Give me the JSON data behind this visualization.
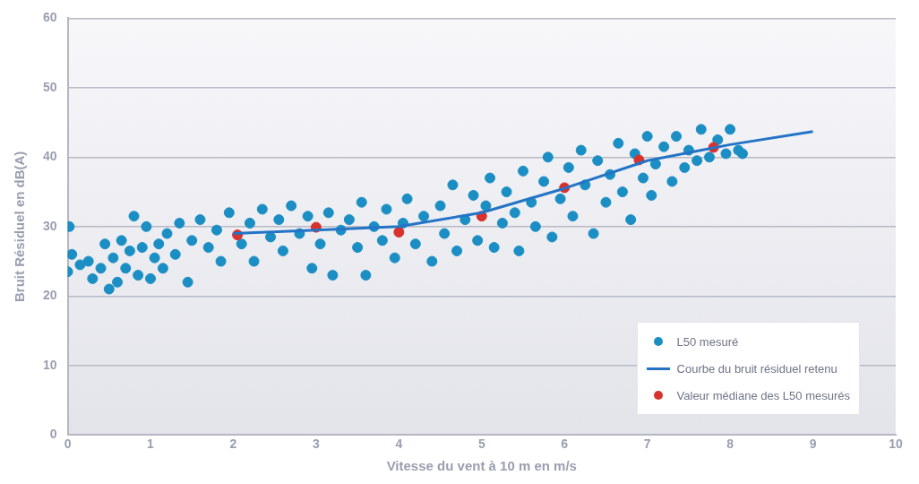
{
  "chart_data": {
    "type": "scatter",
    "xlabel": "Vitesse du vent à 10 m en m/s",
    "ylabel": "Bruit Résiduel en dB(A)",
    "xlim": [
      0,
      10
    ],
    "xticks": [
      0,
      1,
      2,
      3,
      4,
      5,
      6,
      7,
      8,
      9,
      10
    ],
    "ylim": [
      0,
      60
    ],
    "yticks": [
      0,
      10,
      20,
      30,
      40,
      50,
      60
    ],
    "grid": "y",
    "legend": "bottom right",
    "marker": "circle",
    "series": [
      {
        "name": "L50 mesuré",
        "color": "#1b8ec4",
        "x": [
          0.0,
          0.02,
          0.05,
          0.15,
          0.25,
          0.3,
          0.4,
          0.45,
          0.5,
          0.55,
          0.6,
          0.65,
          0.7,
          0.75,
          0.8,
          0.85,
          0.9,
          0.95,
          1.0,
          1.05,
          1.1,
          1.15,
          1.2,
          1.3,
          1.35,
          1.45,
          1.5,
          1.6,
          1.7,
          1.8,
          1.85,
          1.95,
          2.1,
          2.2,
          2.25,
          2.35,
          2.45,
          2.55,
          2.6,
          2.7,
          2.8,
          2.9,
          2.95,
          3.05,
          3.15,
          3.2,
          3.3,
          3.4,
          3.5,
          3.55,
          3.6,
          3.7,
          3.8,
          3.85,
          3.95,
          4.05,
          4.1,
          4.2,
          4.3,
          4.4,
          4.5,
          4.55,
          4.65,
          4.7,
          4.8,
          4.9,
          4.95,
          5.05,
          5.1,
          5.15,
          5.25,
          5.3,
          5.4,
          5.45,
          5.5,
          5.6,
          5.65,
          5.75,
          5.8,
          5.85,
          5.95,
          6.05,
          6.1,
          6.2,
          6.25,
          6.35,
          6.4,
          6.5,
          6.55,
          6.65,
          6.7,
          6.8,
          6.85,
          6.95,
          7.0,
          7.05,
          7.1,
          7.2,
          7.3,
          7.35,
          7.45,
          7.5,
          7.6,
          7.65,
          7.75,
          7.85,
          7.95,
          8.0,
          8.1,
          8.15
        ],
        "values": [
          23.5,
          30,
          26,
          24.5,
          25,
          22.5,
          24,
          27.5,
          21,
          25.5,
          22,
          28,
          24,
          26.5,
          31.5,
          23,
          27,
          30,
          22.5,
          25.5,
          27.5,
          24,
          29,
          26,
          30.5,
          22,
          28,
          31,
          27,
          29.5,
          25,
          32,
          27.5,
          30.5,
          25,
          32.5,
          28.5,
          31,
          26.5,
          33,
          29,
          31.5,
          24,
          27.5,
          32,
          23,
          29.5,
          31,
          27,
          33.5,
          23,
          30,
          28,
          32.5,
          25.5,
          30.5,
          34,
          27.5,
          31.5,
          25,
          33,
          29,
          36,
          26.5,
          31,
          34.5,
          28,
          33,
          37,
          27,
          30.5,
          35,
          32,
          26.5,
          38,
          33.5,
          30,
          36.5,
          40,
          28.5,
          34,
          38.5,
          31.5,
          41,
          36,
          29,
          39.5,
          33.5,
          37.5,
          42,
          35,
          31,
          40.5,
          37,
          43,
          34.5,
          39,
          41.5,
          36.5,
          43,
          38.5,
          41,
          39.5,
          44,
          40,
          42.5,
          40.5,
          44,
          41,
          40.5
        ]
      },
      {
        "name": "Courbe du bruit résiduel retenu",
        "type": "line",
        "color": "#2374c6",
        "marker": "none",
        "x": [
          2,
          3,
          4,
          5,
          6,
          7,
          8,
          9
        ],
        "values": [
          29,
          29.5,
          30,
          32,
          35.5,
          39.5,
          41.8,
          43.7
        ]
      },
      {
        "name": "Valeur médiane des L50 mesurés",
        "color": "#d8322e",
        "x": [
          2.05,
          3.0,
          4.0,
          5.0,
          6.0,
          6.9,
          7.8
        ],
        "values": [
          28.8,
          29.9,
          29.2,
          31.5,
          35.6,
          39.6,
          41.4
        ]
      }
    ]
  }
}
